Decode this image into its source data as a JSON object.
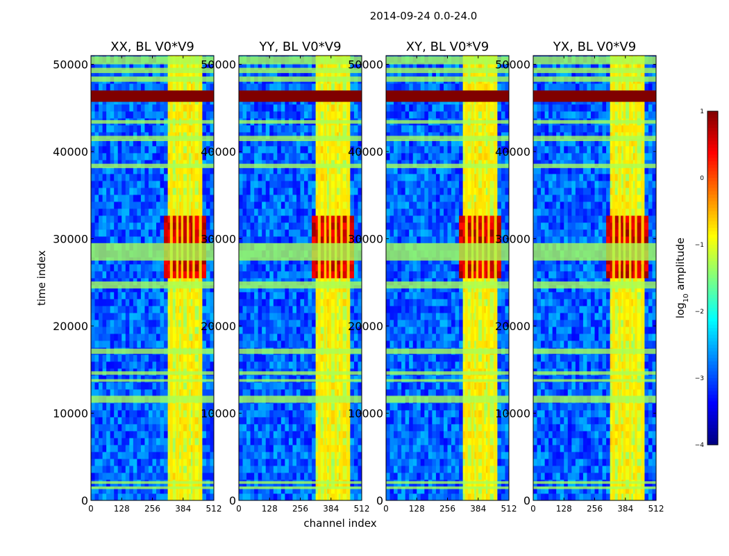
{
  "figure": {
    "suptitle": "2014-09-24 0.0-24.0",
    "xlabel": "channel index",
    "ylabel": "time index"
  },
  "chart_data": {
    "type": "heatmap",
    "title": "2014-09-24 0.0-24.0",
    "xlabel": "channel index",
    "ylabel": "time index",
    "xlim": [
      0,
      512
    ],
    "ylim": [
      0,
      51000
    ],
    "xticks": [
      0,
      128,
      256,
      384,
      512
    ],
    "yticks": [
      0,
      10000,
      20000,
      30000,
      40000,
      50000
    ],
    "colormap": "jet",
    "colorbar": {
      "label": "log10 amplitude",
      "label_main": "log",
      "label_sub": "10",
      "label_rest": " amplitude",
      "range": [
        -4,
        1
      ],
      "ticks": [
        1,
        0,
        -1,
        -2,
        -3,
        -4
      ],
      "tick_labels": [
        "1",
        "0",
        "−1",
        "−2",
        "−3",
        "−4"
      ]
    },
    "panels": [
      {
        "title": "XX, BL V0*V9",
        "key": "xx"
      },
      {
        "title": "YY, BL V0*V9",
        "key": "yy"
      },
      {
        "title": "XY, BL V0*V9",
        "key": "xy"
      },
      {
        "title": "YX, BL V0*V9",
        "key": "yx"
      }
    ],
    "features": {
      "background_log_amp": -2.9,
      "rfi_channel_band": [
        325,
        470
      ],
      "rfi_band_log_amp": -1.0,
      "strong_channels": [
        {
          "center": 335,
          "width": 12
        },
        {
          "center": 360,
          "width": 10
        },
        {
          "center": 380,
          "width": 10
        },
        {
          "center": 404,
          "width": 10
        },
        {
          "center": 428,
          "width": 10
        },
        {
          "center": 456,
          "width": 12
        }
      ],
      "saturated_time_band": [
        45700,
        47000
      ],
      "flagged_time_bands": [
        [
          1300,
          1600
        ],
        [
          1900,
          2200
        ],
        [
          11200,
          12000
        ],
        [
          13600,
          13900
        ],
        [
          14400,
          14800
        ],
        [
          16800,
          17400
        ],
        [
          24300,
          25100
        ],
        [
          27500,
          29500
        ],
        [
          38100,
          38600
        ],
        [
          41200,
          41800
        ],
        [
          43200,
          43600
        ],
        [
          48000,
          48600
        ],
        [
          49000,
          49600
        ],
        [
          50000,
          50900
        ]
      ],
      "burst_time_range": [
        25500,
        32500
      ],
      "burst_log_amp": 0.6
    }
  }
}
